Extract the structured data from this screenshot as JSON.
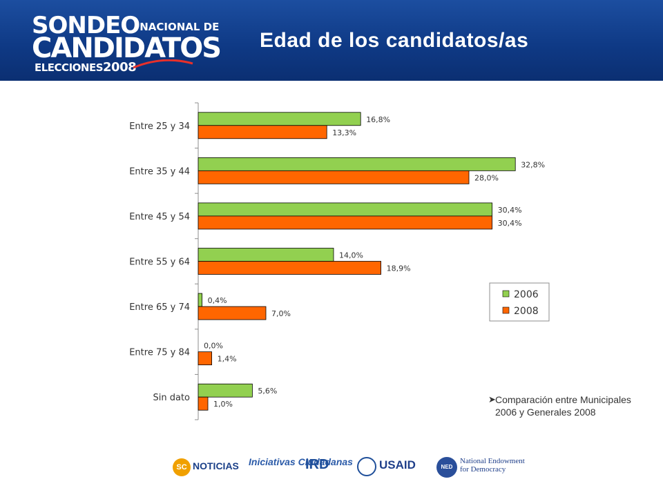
{
  "header": {
    "logo": {
      "line1": "SONDEO",
      "line1_small": "NACIONAL DE",
      "line2": "CANDIDATOS",
      "line3": "ELECCIONES",
      "line3_year": "2008"
    },
    "title": "Edad de los candidatos/as"
  },
  "colors": {
    "header_bg": "#0f3a86",
    "series_2006": "#92d050",
    "series_2008": "#ff6600"
  },
  "chart_data": {
    "type": "bar",
    "orientation": "horizontal",
    "title": "Edad de los candidatos/as",
    "categories": [
      "Entre 25 y 34",
      "Entre 35 y 44",
      "Entre 45 y 54",
      "Entre 55 y 64",
      "Entre 65 y 74",
      "Entre 75 y 84",
      "Sin dato"
    ],
    "series": [
      {
        "name": "2006",
        "values": [
          16.8,
          32.8,
          30.4,
          14.0,
          0.4,
          0.0,
          5.6
        ],
        "labels": [
          "16,8%",
          "32,8%",
          "30,4%",
          "14,0%",
          "0,4%",
          "0,0%",
          "5,6%"
        ],
        "color": "#92d050"
      },
      {
        "name": "2008",
        "values": [
          13.3,
          28.0,
          30.4,
          18.9,
          7.0,
          1.4,
          1.0
        ],
        "labels": [
          "13,3%",
          "28,0%",
          "30,4%",
          "18,9%",
          "7,0%",
          "1,4%",
          "1,0%"
        ],
        "color": "#ff6600"
      }
    ],
    "xlim": [
      0,
      35
    ],
    "grid": false,
    "legend": "right"
  },
  "note": {
    "arrow": "➤",
    "text": "Comparación entre Municipales 2006 y Generales 2008"
  },
  "footer": {
    "logos": [
      {
        "name": "SC NOTICIAS",
        "mark": "SC",
        "text": "NOTICIAS"
      },
      {
        "name": "Iniciativas Ciudadanas",
        "text": "Iniciativas Ciudadanas"
      },
      {
        "name": "IRD",
        "text": "IRD"
      },
      {
        "name": "USAID",
        "text": "USAID"
      },
      {
        "name": "National Endowment for Democracy",
        "mark": "NED",
        "text": "National Endowment for Democracy"
      }
    ]
  }
}
